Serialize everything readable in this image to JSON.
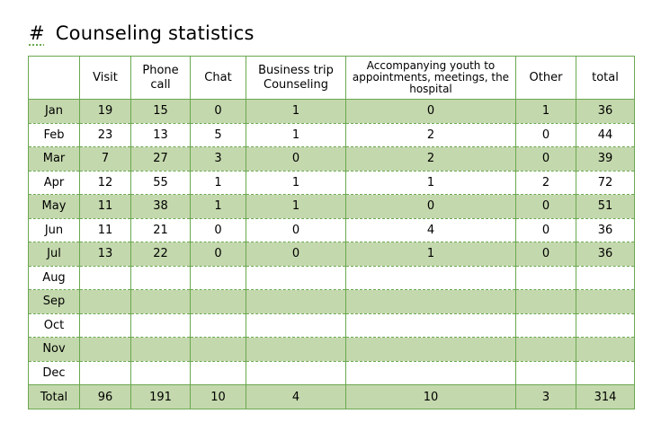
{
  "title": {
    "hash": "#",
    "text": "Counseling statistics"
  },
  "columns": [
    "",
    "Visit",
    "Phone call",
    "Chat",
    "Business trip Counseling",
    "Accompanying youth to appointments, meetings, the hospital",
    "Other",
    "total"
  ],
  "rows": [
    {
      "month": "Jan",
      "cells": [
        "19",
        "15",
        "0",
        "1",
        "0",
        "1",
        "36"
      ]
    },
    {
      "month": "Feb",
      "cells": [
        "23",
        "13",
        "5",
        "1",
        "2",
        "0",
        "44"
      ]
    },
    {
      "month": "Mar",
      "cells": [
        "7",
        "27",
        "3",
        "0",
        "2",
        "0",
        "39"
      ]
    },
    {
      "month": "Apr",
      "cells": [
        "12",
        "55",
        "1",
        "1",
        "1",
        "2",
        "72"
      ]
    },
    {
      "month": "May",
      "cells": [
        "11",
        "38",
        "1",
        "1",
        "0",
        "0",
        "51"
      ]
    },
    {
      "month": "Jun",
      "cells": [
        "11",
        "21",
        "0",
        "0",
        "4",
        "0",
        "36"
      ]
    },
    {
      "month": "Jul",
      "cells": [
        "13",
        "22",
        "0",
        "0",
        "1",
        "0",
        "36"
      ]
    },
    {
      "month": "Aug",
      "cells": [
        "",
        "",
        "",
        "",
        "",
        "",
        ""
      ]
    },
    {
      "month": "Sep",
      "cells": [
        "",
        "",
        "",
        "",
        "",
        "",
        ""
      ]
    },
    {
      "month": "Oct",
      "cells": [
        "",
        "",
        "",
        "",
        "",
        "",
        ""
      ]
    },
    {
      "month": "Nov",
      "cells": [
        "",
        "",
        "",
        "",
        "",
        "",
        ""
      ]
    },
    {
      "month": "Dec",
      "cells": [
        "",
        "",
        "",
        "",
        "",
        "",
        ""
      ]
    }
  ],
  "total": {
    "label": "Total",
    "cells": [
      "96",
      "191",
      "10",
      "4",
      "10",
      "3",
      "314"
    ]
  },
  "colors": {
    "border": "#6aa84f",
    "stripe": "#c4d8ad"
  }
}
